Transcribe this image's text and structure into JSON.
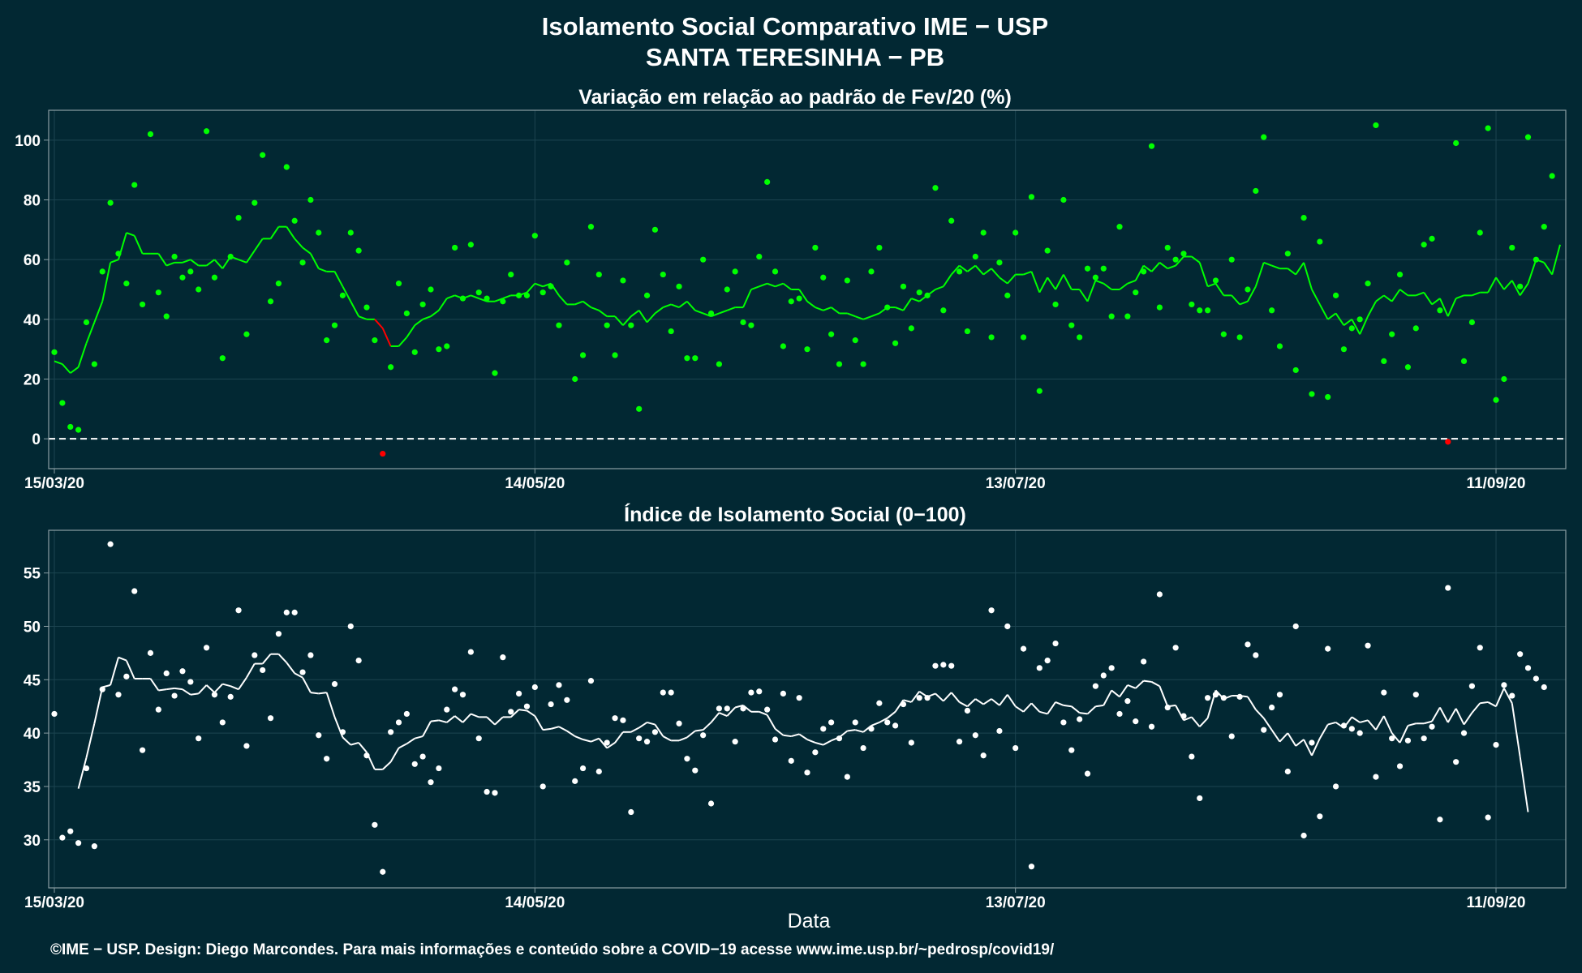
{
  "header": {
    "title": "Isolamento Social Comparativo IME − USP",
    "subtitle": "SANTA TERESINHA − PB"
  },
  "footer": {
    "xlabel": "Data",
    "credit": "©IME − USP. Design: Diego Marcondes. Para mais informações e conteúdo sobre a COVID−19 acesse www.ime.usp.br/~pedrosp/covid19/"
  },
  "colors": {
    "background": "#022833",
    "panel_border": "#8a9ea3",
    "grid": "#1c4450",
    "green": "#00ff00",
    "red": "#ff0000",
    "white": "#ffffff"
  },
  "chart_data": [
    {
      "type": "scatter",
      "title": "Variação em relação ao padrão de Fev/20 (%)",
      "xlabel": "",
      "ylabel": "",
      "x_start": "15/03/20",
      "x_range_days": [
        0,
        188
      ],
      "ylim": [
        -10,
        110
      ],
      "yticks": [
        0,
        20,
        40,
        60,
        80,
        100
      ],
      "xticks": [
        {
          "day": 0,
          "label": "15/03/20"
        },
        {
          "day": 60,
          "label": "14/05/20"
        },
        {
          "day": 120,
          "label": "13/07/20"
        },
        {
          "day": 180,
          "label": "11/09/20"
        }
      ],
      "grid": true,
      "reference_line": 0,
      "series": [
        {
          "kind": "points",
          "color_rule": "green when >= 0, red when < 0",
          "values": [
            29,
            12,
            4,
            3,
            39,
            25,
            56,
            79,
            62,
            52,
            85,
            45,
            102,
            49,
            41,
            61,
            54,
            56,
            50,
            103,
            54,
            27,
            61,
            74,
            35,
            79,
            95,
            46,
            52,
            91,
            73,
            59,
            80,
            69,
            33,
            38,
            48,
            69,
            63,
            44,
            33,
            -5,
            24,
            52,
            42,
            29,
            45,
            50,
            30,
            31,
            64,
            47,
            65,
            49,
            47,
            22,
            46,
            55,
            48,
            48,
            68,
            49,
            51,
            38,
            59,
            20,
            28,
            71,
            55,
            38,
            28,
            53,
            38,
            10,
            48,
            70,
            55,
            36,
            51,
            27,
            27,
            60,
            42,
            25,
            50,
            56,
            39,
            38,
            61,
            86,
            56,
            31,
            46,
            47,
            30,
            64,
            54,
            35,
            25,
            53,
            33,
            25,
            56,
            64,
            44,
            32,
            51,
            37,
            49,
            48,
            84,
            43,
            73,
            56,
            36,
            61,
            69,
            34,
            59,
            48,
            69,
            34,
            81,
            16,
            63,
            45,
            80,
            38,
            34,
            57,
            54,
            57,
            41,
            71,
            41,
            49,
            56,
            98,
            44,
            64,
            60,
            62,
            45,
            43,
            43,
            53,
            35,
            60,
            34,
            50,
            83,
            101,
            43,
            31,
            62,
            23,
            74,
            15,
            66,
            14,
            48,
            30,
            37,
            40,
            52,
            105,
            26,
            35,
            55,
            24,
            37,
            65,
            67,
            43,
            -1,
            99,
            26,
            39,
            69,
            104,
            13,
            20,
            64,
            51,
            101,
            60,
            71,
            88
          ]
        },
        {
          "kind": "moving_average_line",
          "color": "#00ff00",
          "values": [
            26,
            25,
            22,
            24,
            32,
            39,
            46,
            59,
            60,
            69,
            68,
            62,
            62,
            62,
            58,
            59,
            59,
            60,
            58,
            58,
            60,
            57,
            61,
            60,
            59,
            63,
            67,
            67,
            71,
            71,
            67,
            64,
            62,
            57,
            56,
            56,
            51,
            46,
            41,
            40,
            40,
            37,
            31,
            31,
            34,
            38,
            40,
            41,
            43,
            47,
            48,
            47,
            48,
            47,
            46,
            46,
            47,
            48,
            48,
            49,
            52,
            51,
            52,
            48,
            45,
            45,
            46,
            44,
            43,
            41,
            41,
            38,
            41,
            43,
            39,
            42,
            44,
            45,
            44,
            46,
            43,
            42,
            41,
            42,
            43,
            44,
            44,
            50,
            51,
            52,
            51,
            52,
            50,
            50,
            46,
            44,
            43,
            44,
            42,
            42,
            41,
            40,
            41,
            42,
            44,
            44,
            43,
            47,
            46,
            48,
            50,
            51,
            55,
            58,
            56,
            58,
            55,
            57,
            54,
            52,
            55,
            55,
            56,
            49,
            54,
            50,
            55,
            50,
            50,
            46,
            53,
            52,
            50,
            50,
            52,
            53,
            58,
            56,
            59,
            57,
            58,
            61,
            61,
            59,
            51,
            52,
            48,
            48,
            45,
            46,
            51,
            59,
            58,
            57,
            57,
            55,
            59,
            50,
            45,
            40,
            42,
            38,
            40,
            35,
            41,
            46,
            48,
            46,
            50,
            48,
            48,
            49,
            45,
            47,
            41,
            47,
            48,
            48,
            49,
            49,
            54,
            50,
            53,
            48,
            52,
            60,
            59,
            55,
            65
          ]
        }
      ]
    },
    {
      "type": "scatter",
      "title": "Índice de Isolamento Social (0−100)",
      "xlabel": "Data",
      "ylabel": "",
      "x_start": "15/03/20",
      "x_range_days": [
        0,
        188
      ],
      "ylim": [
        25.5,
        59
      ],
      "yticks": [
        30,
        35,
        40,
        45,
        50,
        55
      ],
      "xticks": [
        {
          "day": 0,
          "label": "15/03/20"
        },
        {
          "day": 60,
          "label": "14/05/20"
        },
        {
          "day": 120,
          "label": "13/07/20"
        },
        {
          "day": 180,
          "label": "11/09/20"
        }
      ],
      "grid": true,
      "series": [
        {
          "kind": "points",
          "color": "#ffffff",
          "values": [
            41.8,
            30.2,
            30.8,
            29.7,
            36.7,
            29.4,
            44.1,
            57.7,
            43.6,
            45.3,
            53.3,
            38.4,
            47.5,
            42.2,
            45.6,
            43.5,
            45.8,
            44.8,
            39.5,
            48.0,
            43.6,
            41.0,
            43.4,
            51.5,
            38.8,
            47.3,
            45.9,
            41.4,
            49.3,
            51.3,
            51.3,
            45.7,
            47.3,
            39.8,
            37.6,
            44.6,
            40.1,
            50.0,
            46.8,
            37.9,
            31.4,
            27.0,
            40.1,
            41.0,
            41.8,
            37.1,
            37.8,
            35.4,
            36.7,
            42.2,
            44.1,
            43.6,
            47.6,
            39.5,
            34.5,
            34.4,
            47.1,
            42.0,
            43.7,
            42.5,
            44.3,
            35.0,
            42.7,
            44.5,
            43.1,
            35.5,
            36.7,
            44.9,
            36.4,
            39.1,
            41.4,
            41.2,
            32.6,
            39.5,
            39.2,
            40.1,
            43.8,
            43.8,
            40.9,
            37.6,
            36.5,
            39.8,
            33.4,
            42.3,
            42.3,
            39.2,
            42.3,
            43.8,
            43.9,
            42.2,
            39.4,
            43.7,
            37.4,
            43.3,
            36.3,
            38.2,
            40.4,
            41.0,
            39.5,
            35.9,
            41.0,
            38.6,
            40.4,
            42.8,
            41.0,
            40.7,
            42.7,
            39.1,
            43.3,
            43.3,
            46.3,
            46.4,
            46.3,
            39.2,
            42.1,
            39.8,
            37.9,
            51.5,
            40.2,
            50.0,
            38.6,
            47.9,
            27.5,
            46.1,
            46.8,
            48.4,
            41.0,
            38.4,
            41.3,
            36.2,
            44.4,
            45.4,
            46.1,
            41.8,
            43.0,
            41.1,
            46.7,
            40.6,
            53.0,
            42.4,
            48.0,
            41.6,
            37.8,
            33.9,
            43.3,
            43.6,
            43.3,
            39.7,
            43.4,
            48.3,
            47.3,
            40.3,
            42.4,
            43.6,
            36.4,
            50.0,
            30.4,
            39.1,
            32.2,
            47.9,
            35.0,
            40.7,
            40.4,
            40.0,
            48.2,
            35.9,
            43.8,
            39.5,
            36.9,
            39.3,
            43.6,
            39.5,
            40.6,
            31.9,
            53.6,
            37.3,
            40.0,
            44.4,
            48.0,
            32.1,
            38.9,
            44.5,
            43.5,
            47.4,
            46.1,
            45.1,
            44.3
          ]
        },
        {
          "kind": "moving_average_line",
          "color": "#ffffff",
          "values": [
            null,
            null,
            null,
            34.8,
            37.7,
            40.9,
            44.3,
            44.5,
            47.1,
            46.8,
            45.1,
            45.1,
            45.1,
            44.0,
            44.1,
            44.2,
            44.1,
            43.6,
            43.7,
            44.5,
            43.8,
            44.6,
            44.4,
            44.1,
            45.2,
            46.5,
            46.5,
            47.4,
            47.4,
            46.6,
            45.6,
            45.2,
            43.8,
            43.7,
            43.8,
            41.5,
            39.6,
            38.9,
            39.1,
            38.2,
            36.6,
            36.6,
            37.3,
            38.6,
            39.0,
            39.5,
            39.7,
            41.1,
            41.2,
            41.0,
            41.6,
            41.0,
            41.8,
            41.5,
            41.5,
            40.8,
            41.5,
            41.5,
            42.2,
            42.1,
            41.6,
            40.3,
            40.4,
            40.6,
            40.2,
            39.7,
            39.4,
            39.2,
            39.5,
            38.6,
            39.1,
            40.1,
            40.1,
            40.5,
            41.0,
            40.8,
            39.7,
            39.3,
            39.3,
            39.6,
            40.2,
            40.3,
            41.0,
            41.9,
            41.6,
            42.4,
            42.6,
            42.0,
            42.0,
            41.7,
            40.4,
            39.8,
            39.7,
            39.9,
            39.4,
            39.1,
            38.9,
            39.3,
            39.6,
            40.2,
            40.3,
            40.1,
            40.7,
            41.0,
            41.4,
            42.0,
            43.1,
            42.9,
            43.9,
            43.4,
            43.7,
            43.0,
            43.8,
            42.9,
            42.5,
            43.2,
            42.7,
            43.2,
            42.6,
            43.6,
            42.5,
            42.0,
            42.8,
            42.0,
            41.8,
            42.9,
            42.6,
            42.5,
            41.9,
            41.8,
            42.5,
            42.6,
            44.0,
            43.4,
            44.5,
            44.2,
            44.9,
            44.8,
            44.4,
            42.5,
            42.6,
            41.2,
            41.5,
            40.6,
            41.4,
            44.0,
            43.2,
            43.5,
            43.5,
            43.4,
            42.2,
            41.4,
            40.3,
            39.2,
            40.0,
            38.8,
            39.4,
            37.9,
            39.5,
            40.8,
            41.0,
            40.5,
            41.5,
            41.0,
            41.2,
            40.3,
            41.6,
            40.0,
            39.1,
            40.7,
            40.9,
            40.9,
            41.1,
            42.4,
            41.0,
            42.3,
            40.8,
            41.9,
            42.8,
            42.9,
            42.5,
            44.2,
            42.8,
            37.8,
            32.6
          ]
        }
      ]
    }
  ]
}
